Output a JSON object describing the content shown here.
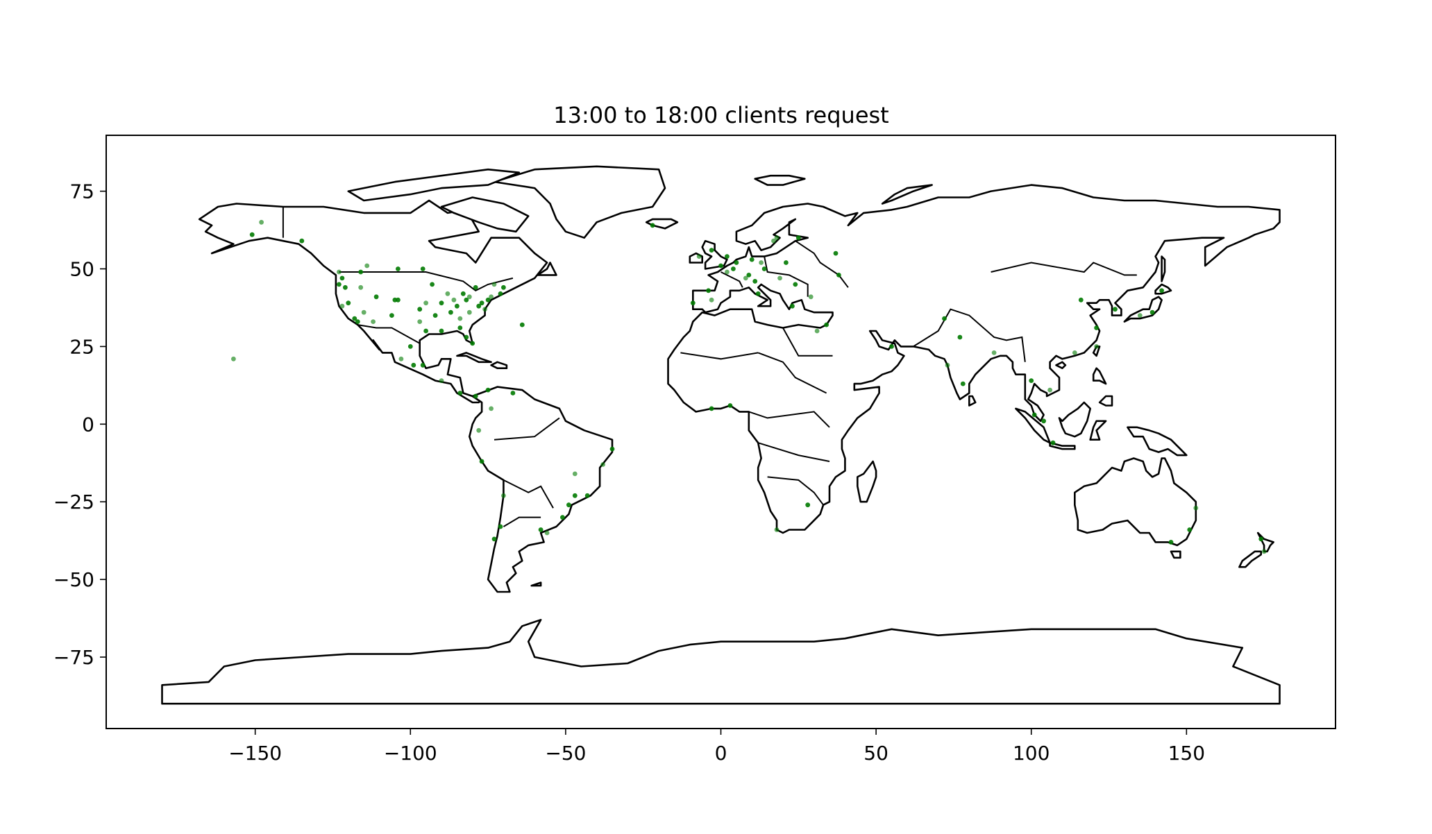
{
  "chart_data": {
    "type": "scatter",
    "title": "13:00 to 18:00 clients request",
    "xlabel": "",
    "ylabel": "",
    "xlim": [
      -198,
      198
    ],
    "ylim": [
      -98,
      93
    ],
    "xticks": [
      -150,
      -100,
      -50,
      0,
      50,
      100,
      150
    ],
    "yticks": [
      75,
      50,
      25,
      0,
      -25,
      -50,
      -75
    ],
    "xtick_labels": [
      "−150",
      "−100",
      "−50",
      "0",
      "50",
      "100",
      "150"
    ],
    "ytick_labels": [
      "75",
      "50",
      "25",
      "0",
      "−25",
      "−50",
      "−75"
    ],
    "grid": false,
    "marker_color": "#007a00",
    "basemap": "world country outlines",
    "points": [
      [
        -148,
        65
      ],
      [
        -151,
        61
      ],
      [
        -135,
        59
      ],
      [
        -123,
        49
      ],
      [
        -122,
        47
      ],
      [
        -123,
        45
      ],
      [
        -122,
        38
      ],
      [
        -118,
        34
      ],
      [
        -117,
        33
      ],
      [
        -112,
        33
      ],
      [
        -105,
        40
      ],
      [
        -111,
        41
      ],
      [
        -97,
        33
      ],
      [
        -95,
        30
      ],
      [
        -90,
        30
      ],
      [
        -84,
        34
      ],
      [
        -80,
        26
      ],
      [
        -82,
        28
      ],
      [
        -81,
        36
      ],
      [
        -77,
        39
      ],
      [
        -75,
        40
      ],
      [
        -74,
        41
      ],
      [
        -71,
        42
      ],
      [
        -70,
        44
      ],
      [
        -73,
        45
      ],
      [
        -79,
        44
      ],
      [
        -83,
        42
      ],
      [
        -88,
        42
      ],
      [
        -93,
        45
      ],
      [
        -90,
        39
      ],
      [
        -86,
        40
      ],
      [
        -85,
        38
      ],
      [
        -87,
        36
      ],
      [
        -81,
        41
      ],
      [
        -82,
        40
      ],
      [
        -78,
        38
      ],
      [
        -76,
        37
      ],
      [
        -84,
        31
      ],
      [
        -92,
        35
      ],
      [
        -95,
        39
      ],
      [
        -97,
        37
      ],
      [
        -104,
        40
      ],
      [
        -115,
        36
      ],
      [
        -120,
        39
      ],
      [
        -121,
        44
      ],
      [
        -116,
        44
      ],
      [
        -106,
        35
      ],
      [
        -99,
        19
      ],
      [
        -103,
        21
      ],
      [
        -100,
        25
      ],
      [
        -96,
        19
      ],
      [
        -90,
        14
      ],
      [
        -84,
        10
      ],
      [
        -79,
        9
      ],
      [
        -74,
        5
      ],
      [
        -75,
        11
      ],
      [
        -67,
        10
      ],
      [
        -78,
        -2
      ],
      [
        -77,
        -12
      ],
      [
        -71,
        -33
      ],
      [
        -70,
        -23
      ],
      [
        -73,
        -37
      ],
      [
        -58,
        -34
      ],
      [
        -56,
        -35
      ],
      [
        -47,
        -23
      ],
      [
        -43,
        -23
      ],
      [
        -47,
        -16
      ],
      [
        -49,
        -26
      ],
      [
        -51,
        -30
      ],
      [
        -38,
        -13
      ],
      [
        -35,
        -8
      ],
      [
        -64,
        32
      ],
      [
        -157,
        21
      ],
      [
        -22,
        64
      ],
      [
        0,
        51
      ],
      [
        2,
        49
      ],
      [
        5,
        52
      ],
      [
        9,
        48
      ],
      [
        13,
        52
      ],
      [
        10,
        53
      ],
      [
        4,
        50
      ],
      [
        8,
        47
      ],
      [
        11,
        46
      ],
      [
        12,
        42
      ],
      [
        -3,
        40
      ],
      [
        -9,
        39
      ],
      [
        -4,
        43
      ],
      [
        -7,
        54
      ],
      [
        -3,
        56
      ],
      [
        2,
        54
      ],
      [
        18,
        60
      ],
      [
        25,
        60
      ],
      [
        21,
        52
      ],
      [
        19,
        47
      ],
      [
        14,
        50
      ],
      [
        24,
        45
      ],
      [
        29,
        41
      ],
      [
        38,
        48
      ],
      [
        37,
        55
      ],
      [
        17,
        59
      ],
      [
        23,
        38
      ],
      [
        34,
        32
      ],
      [
        31,
        30
      ],
      [
        55,
        25
      ],
      [
        72,
        34
      ],
      [
        73,
        19
      ],
      [
        77,
        28
      ],
      [
        78,
        13
      ],
      [
        88,
        23
      ],
      [
        100,
        14
      ],
      [
        104,
        1
      ],
      [
        106,
        11
      ],
      [
        101,
        3
      ],
      [
        107,
        -6
      ],
      [
        114,
        23
      ],
      [
        121,
        31
      ],
      [
        116,
        40
      ],
      [
        121,
        25
      ],
      [
        127,
        37
      ],
      [
        139,
        36
      ],
      [
        135,
        35
      ],
      [
        142,
        43
      ],
      [
        151,
        -34
      ],
      [
        153,
        -27
      ],
      [
        145,
        -38
      ],
      [
        174,
        -37
      ],
      [
        175,
        -41
      ],
      [
        -3,
        5
      ],
      [
        3,
        6
      ],
      [
        18,
        -34
      ],
      [
        28,
        -26
      ],
      [
        -116,
        49
      ],
      [
        -114,
        51
      ],
      [
        -104,
        50
      ],
      [
        -96,
        50
      ]
    ]
  }
}
